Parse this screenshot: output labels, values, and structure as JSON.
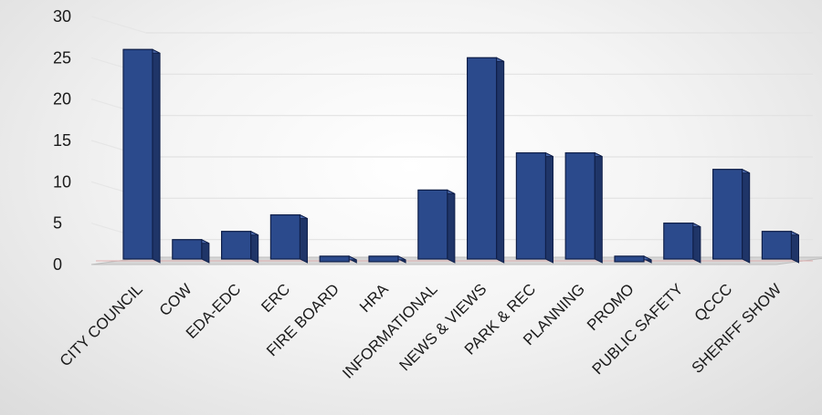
{
  "chart_data": {
    "type": "bar",
    "categories": [
      "CITY COUNCIL",
      "COW",
      "EDA-EDC",
      "ERC",
      "FIRE BOARD",
      "HRA",
      "INFORMATIONAL",
      "NEWS & VIEWS",
      "PARK & REC",
      "PLANNING",
      "PROMO",
      "PUBLIC SAFETY",
      "QCCC",
      "SHERIFF SHOW"
    ],
    "values": [
      26,
      3,
      4,
      6,
      1,
      1,
      9,
      25,
      13.5,
      13.5,
      1,
      5,
      11.5,
      4
    ],
    "ylim": [
      0,
      30
    ],
    "yticks": [
      "0",
      "5",
      "10",
      "15",
      "20",
      "25",
      "30"
    ],
    "grid": true,
    "legend": "none",
    "bar_color": "#2b4a8c"
  }
}
